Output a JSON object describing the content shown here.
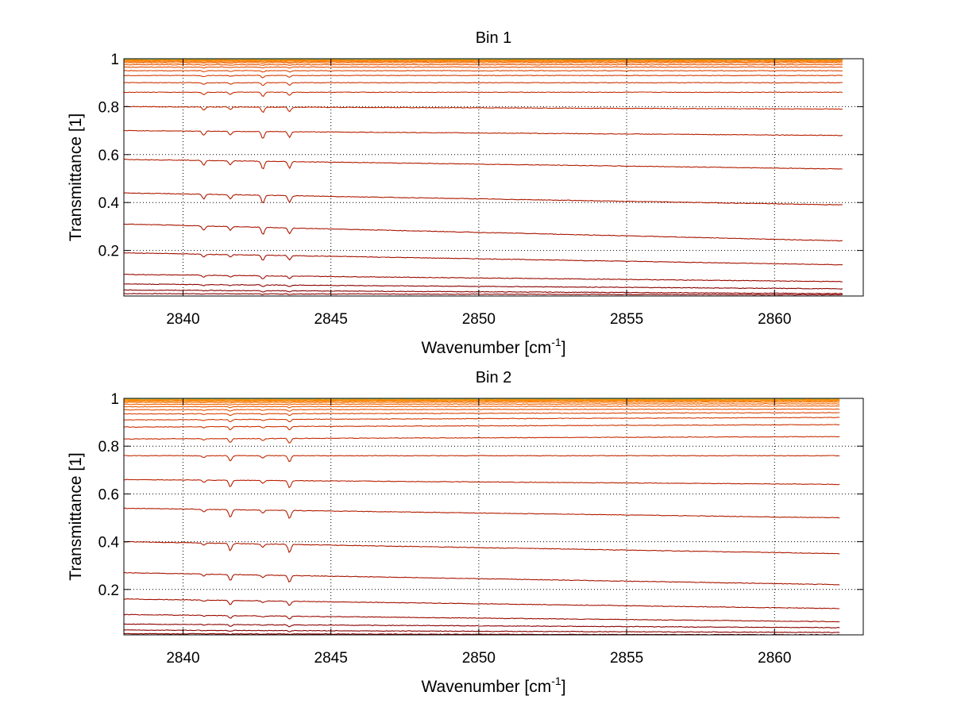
{
  "chart_data": [
    {
      "type": "line",
      "title": "Bin 1",
      "xlabel": "Wavenumber [cm",
      "xlabel_sup": "-1",
      "xlabel_end": "]",
      "ylabel": "Transmittance [1]",
      "xlim": [
        2838,
        2863
      ],
      "ylim": [
        0.01,
        1
      ],
      "x_start": 2838,
      "x_end": 2862.3,
      "xticks": [
        2840,
        2845,
        2850,
        2855,
        2860
      ],
      "xtick_labels": [
        "2840",
        "2845",
        "2850",
        "2855",
        "2860"
      ],
      "yticks": [
        0.2,
        0.4,
        0.6,
        0.8,
        1
      ],
      "ytick_labels": [
        "0.2",
        "0.4",
        "0.6",
        "0.8",
        "1"
      ],
      "grid": true,
      "absorption_lines": [
        2840.7,
        2841.6,
        2842.7,
        2843.6
      ],
      "line_strength": [
        0.6,
        0.5,
        1.0,
        0.8
      ],
      "series": [
        {
          "start": 0.02,
          "end": 0.015,
          "color": "#8b0000"
        },
        {
          "start": 0.035,
          "end": 0.02,
          "color": "#8b0000"
        },
        {
          "start": 0.06,
          "end": 0.04,
          "color": "#8b0000"
        },
        {
          "start": 0.1,
          "end": 0.07,
          "color": "#9b0a00"
        },
        {
          "start": 0.19,
          "end": 0.14,
          "color": "#a31000"
        },
        {
          "start": 0.31,
          "end": 0.24,
          "color": "#a81400"
        },
        {
          "start": 0.44,
          "end": 0.39,
          "color": "#ad1800"
        },
        {
          "start": 0.58,
          "end": 0.54,
          "color": "#b21c00"
        },
        {
          "start": 0.7,
          "end": 0.68,
          "color": "#b82000"
        },
        {
          "start": 0.8,
          "end": 0.79,
          "color": "#c02600"
        },
        {
          "start": 0.86,
          "end": 0.86,
          "color": "#c62c00"
        },
        {
          "start": 0.9,
          "end": 0.9,
          "color": "#cc3200"
        },
        {
          "start": 0.93,
          "end": 0.93,
          "color": "#d43a00"
        },
        {
          "start": 0.95,
          "end": 0.95,
          "color": "#dc4400"
        },
        {
          "start": 0.965,
          "end": 0.965,
          "color": "#e44e00"
        },
        {
          "start": 0.975,
          "end": 0.975,
          "color": "#ea5800"
        },
        {
          "start": 0.983,
          "end": 0.983,
          "color": "#f06400"
        },
        {
          "start": 0.988,
          "end": 0.988,
          "color": "#f47000"
        },
        {
          "start": 0.992,
          "end": 0.992,
          "color": "#f77c00"
        },
        {
          "start": 0.995,
          "end": 0.995,
          "color": "#fa8800"
        },
        {
          "start": 0.997,
          "end": 0.997,
          "color": "#fc9400"
        },
        {
          "start": 0.998,
          "end": 0.998,
          "color": "#f6a020"
        },
        {
          "start": 0.999,
          "end": 0.999,
          "color": "#9ccf50"
        },
        {
          "start": 1.0,
          "end": 1.0,
          "color": "#5fdcb0"
        }
      ]
    },
    {
      "type": "line",
      "title": "Bin 2",
      "xlabel": "Wavenumber [cm",
      "xlabel_sup": "-1",
      "xlabel_end": "]",
      "ylabel": "Transmittance [1]",
      "xlim": [
        2838,
        2863
      ],
      "ylim": [
        0.01,
        1
      ],
      "x_start": 2838,
      "x_end": 2862.2,
      "xticks": [
        2840,
        2845,
        2850,
        2855,
        2860
      ],
      "xtick_labels": [
        "2840",
        "2845",
        "2850",
        "2855",
        "2860"
      ],
      "yticks": [
        0.2,
        0.4,
        0.6,
        0.8,
        1
      ],
      "ytick_labels": [
        "0.2",
        "0.4",
        "0.6",
        "0.8",
        "1"
      ],
      "grid": true,
      "absorption_lines": [
        2840.7,
        2841.6,
        2842.7,
        2843.6
      ],
      "line_strength": [
        0.3,
        0.9,
        0.4,
        1.0
      ],
      "series": [
        {
          "start": 0.015,
          "end": 0.01,
          "color": "#8b0000"
        },
        {
          "start": 0.03,
          "end": 0.02,
          "color": "#8b0000"
        },
        {
          "start": 0.055,
          "end": 0.04,
          "color": "#8b0000"
        },
        {
          "start": 0.095,
          "end": 0.065,
          "color": "#9b0a00"
        },
        {
          "start": 0.16,
          "end": 0.12,
          "color": "#a31000"
        },
        {
          "start": 0.27,
          "end": 0.22,
          "color": "#a81400"
        },
        {
          "start": 0.4,
          "end": 0.35,
          "color": "#ad1800"
        },
        {
          "start": 0.54,
          "end": 0.5,
          "color": "#b21c00"
        },
        {
          "start": 0.66,
          "end": 0.64,
          "color": "#b82000"
        },
        {
          "start": 0.76,
          "end": 0.76,
          "color": "#c02600"
        },
        {
          "start": 0.83,
          "end": 0.84,
          "color": "#c62c00"
        },
        {
          "start": 0.88,
          "end": 0.89,
          "color": "#cc3200"
        },
        {
          "start": 0.91,
          "end": 0.92,
          "color": "#d43a00"
        },
        {
          "start": 0.935,
          "end": 0.94,
          "color": "#dc4400"
        },
        {
          "start": 0.952,
          "end": 0.955,
          "color": "#e44e00"
        },
        {
          "start": 0.965,
          "end": 0.968,
          "color": "#ea5800"
        },
        {
          "start": 0.975,
          "end": 0.977,
          "color": "#f06400"
        },
        {
          "start": 0.983,
          "end": 0.984,
          "color": "#f47000"
        },
        {
          "start": 0.988,
          "end": 0.989,
          "color": "#f77c00"
        },
        {
          "start": 0.992,
          "end": 0.992,
          "color": "#fa8800"
        },
        {
          "start": 0.995,
          "end": 0.995,
          "color": "#fc9400"
        },
        {
          "start": 0.997,
          "end": 0.997,
          "color": "#f6a020"
        },
        {
          "start": 0.999,
          "end": 0.999,
          "color": "#9ccf50"
        },
        {
          "start": 1.0,
          "end": 1.0,
          "color": "#5fdcb0"
        }
      ]
    }
  ]
}
